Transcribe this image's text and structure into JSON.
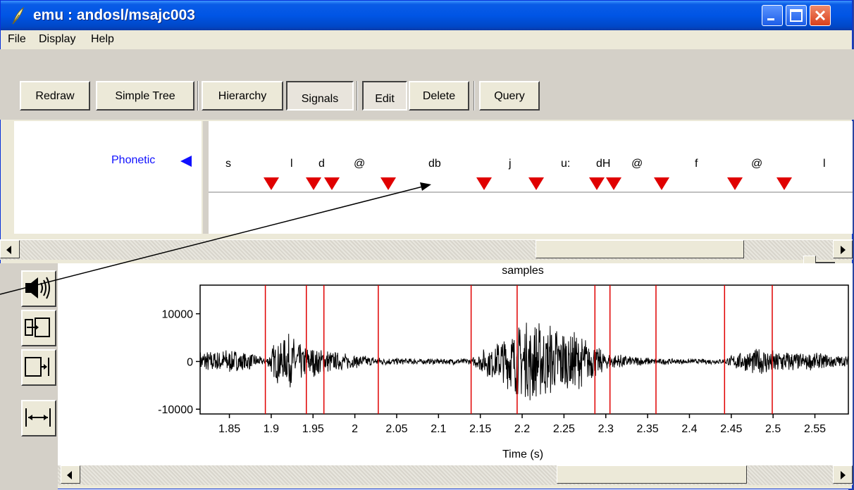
{
  "window": {
    "title": "emu : andosl/msajc003"
  },
  "menu": [
    "File",
    "Display",
    "Help"
  ],
  "toolbar": {
    "redraw": "Redraw",
    "simple_tree": "Simple Tree",
    "hierarchy": "Hierarchy",
    "signals": "Signals",
    "edit": "Edit",
    "delete": "Delete",
    "query": "Query"
  },
  "tier": {
    "label": "Phonetic",
    "segments": [
      "s",
      "l",
      "d",
      "@",
      "db",
      "j",
      "u:",
      "dH",
      "@",
      "f",
      "@",
      "l"
    ]
  },
  "icons": {
    "app": "feather-icon",
    "play": "speaker-icon",
    "zoom_in": "zoom-to-selection-icon",
    "zoom_right": "zoom-right-icon",
    "zoom_all": "zoom-all-icon"
  },
  "chart_data": {
    "type": "line",
    "title": "samples",
    "xlabel": "Time (s)",
    "ylabel": "",
    "xlim": [
      1.815,
      2.59
    ],
    "ylim": [
      -11000,
      16000
    ],
    "x_ticks": [
      "1.85",
      "1.9",
      "1.95",
      "2",
      "2.05",
      "2.1",
      "2.15",
      "2.2",
      "2.25",
      "2.3",
      "2.35",
      "2.4",
      "2.45",
      "2.5",
      "2.55"
    ],
    "x_tick_values": [
      1.85,
      1.9,
      1.95,
      2.0,
      2.05,
      2.1,
      2.15,
      2.2,
      2.25,
      2.3,
      2.35,
      2.4,
      2.45,
      2.5,
      2.55
    ],
    "y_ticks": [
      "10000",
      "0",
      "-10000"
    ],
    "y_tick_values": [
      10000,
      0,
      -10000
    ],
    "boundaries": [
      1.893,
      1.942,
      1.963,
      2.028,
      2.139,
      2.194,
      2.287,
      2.305,
      2.36,
      2.442,
      2.499
    ],
    "envelope": {
      "t": [
        1.815,
        1.85,
        1.88,
        1.893,
        1.905,
        1.92,
        1.94,
        1.96,
        1.98,
        2.0,
        2.03,
        2.06,
        2.1,
        2.139,
        2.16,
        2.19,
        2.21,
        2.23,
        2.26,
        2.28,
        2.3,
        2.32,
        2.36,
        2.4,
        2.44,
        2.46,
        2.48,
        2.5,
        2.53,
        2.56,
        2.59
      ],
      "amp": [
        2500,
        2800,
        1800,
        400,
        4500,
        6000,
        3500,
        3000,
        2000,
        1500,
        900,
        700,
        600,
        700,
        3500,
        7000,
        9000,
        8500,
        7000,
        4500,
        1800,
        1500,
        700,
        500,
        600,
        2000,
        3000,
        2800,
        2000,
        1800,
        1200
      ]
    },
    "color_wave": "#000000",
    "color_boundary": "#e00000"
  },
  "colors": {
    "tier_label": "#1010ff",
    "marker": "#e00000",
    "titlebar": "#0055e5"
  }
}
